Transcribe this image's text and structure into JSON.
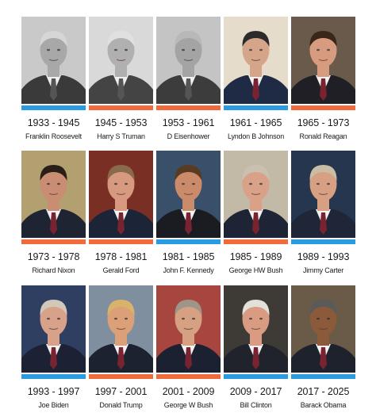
{
  "colors": {
    "blue": "#2a9be0",
    "orange": "#f06a3c",
    "text": "#1a1a1a"
  },
  "presidents": [
    {
      "years": "1933 - 1945",
      "name": "Franklin Roosevelt",
      "bar": "blue",
      "bw": true,
      "bg": "#c9c9c9",
      "suit": "#3a3a3a",
      "skin": "#a8a8a8",
      "hair": "#d6d6d6"
    },
    {
      "years": "1945 - 1953",
      "name": "Harry S Truman",
      "bar": "orange",
      "bw": true,
      "bg": "#d9d9d9",
      "suit": "#444444",
      "skin": "#b0b0b0",
      "hair": "#e0e0e0"
    },
    {
      "years": "1953 - 1961",
      "name": "D Eisenhower",
      "bar": "orange",
      "bw": true,
      "bg": "#c4c4c4",
      "suit": "#3c3c3c",
      "skin": "#a4a4a4",
      "hair": "#b8b8b8"
    },
    {
      "years": "1961 - 1965",
      "name": "Lyndon B Johnson",
      "bar": "blue",
      "bw": false,
      "bg": "#e6dccb",
      "suit": "#1f2a44",
      "skin": "#d5a58a",
      "hair": "#2b2b2b"
    },
    {
      "years": "1965 - 1973",
      "name": "Ronald Reagan",
      "bar": "orange",
      "bw": false,
      "bg": "#6a5a4c",
      "suit": "#1f1f25",
      "skin": "#d79c7f",
      "hair": "#3a2718"
    },
    {
      "years": "1973 - 1978",
      "name": "Richard Nixon",
      "bar": "orange",
      "bw": false,
      "bg": "#b2a070",
      "suit": "#1f2433",
      "skin": "#c98d73",
      "hair": "#2a1e18"
    },
    {
      "years": "1978 - 1981",
      "name": "Gerald Ford",
      "bar": "orange",
      "bw": false,
      "bg": "#7a2f24",
      "suit": "#1c2538",
      "skin": "#d79a80",
      "hair": "#8a6a4a"
    },
    {
      "years": "1981 - 1985",
      "name": "John F. Kennedy",
      "bar": "blue",
      "bw": false,
      "bg": "#38506a",
      "suit": "#1b1b22",
      "skin": "#c98b6a",
      "hair": "#5a3a22"
    },
    {
      "years": "1985 - 1989",
      "name": "George HW Bush",
      "bar": "orange",
      "bw": false,
      "bg": "#c2b9a6",
      "suit": "#1d2436",
      "skin": "#d9a187",
      "hair": "#c9c0b0"
    },
    {
      "years": "1989 - 1993",
      "name": "Jimmy Carter",
      "bar": "blue",
      "bw": false,
      "bg": "#27364f",
      "suit": "#1f2638",
      "skin": "#d8a083",
      "hair": "#c9bda6"
    },
    {
      "years": "1993 - 1997",
      "name": "Joe Biden",
      "bar": "blue",
      "bw": false,
      "bg": "#2f3f62",
      "suit": "#1c2233",
      "skin": "#d7a18a",
      "hair": "#d2c8ba"
    },
    {
      "years": "1997 - 2001",
      "name": "Donald Trump",
      "bar": "orange",
      "bw": false,
      "bg": "#7f8fa0",
      "suit": "#1c2230",
      "skin": "#dca078",
      "hair": "#d9b36a"
    },
    {
      "years": "2001 - 2009",
      "name": "George W Bush",
      "bar": "orange",
      "bw": false,
      "bg": "#a7463e",
      "suit": "#1c2132",
      "skin": "#d6a083",
      "hair": "#9f9488"
    },
    {
      "years": "2009 - 2017",
      "name": "Bill Clinton",
      "bar": "blue",
      "bw": false,
      "bg": "#3e3a36",
      "suit": "#20232b",
      "skin": "#d99b82",
      "hair": "#e3e0da"
    },
    {
      "years": "2017 - 2025",
      "name": "Barack Obama",
      "bar": "blue",
      "bw": false,
      "bg": "#6a5a48",
      "suit": "#1d222c",
      "skin": "#8a5a3a",
      "hair": "#5a5a5a"
    }
  ]
}
